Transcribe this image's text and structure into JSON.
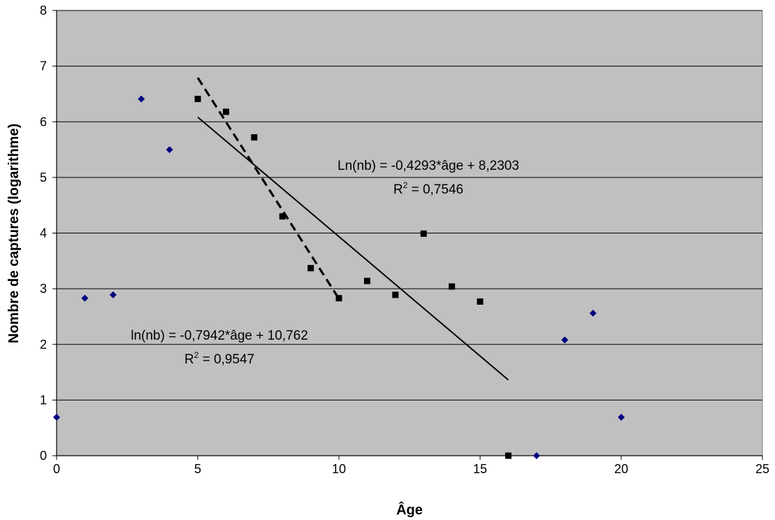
{
  "chart_data": {
    "type": "scatter",
    "xlabel": "Âge",
    "ylabel": "Nombre de captures (logarithme)",
    "xlim": [
      0,
      25
    ],
    "ylim": [
      0,
      8
    ],
    "xticks": [
      "0",
      "5",
      "10",
      "15",
      "20",
      "25"
    ],
    "yticks": [
      "0",
      "1",
      "2",
      "3",
      "4",
      "5",
      "6",
      "7",
      "8"
    ],
    "grid": "horizontal",
    "plot_background": "#c0c0c0",
    "series": [
      {
        "marker": "diamond",
        "color": "#000080",
        "x": [
          0,
          1,
          2,
          3,
          4,
          17,
          18,
          19,
          20
        ],
        "y": [
          0.69,
          2.83,
          2.89,
          6.41,
          5.5,
          0,
          2.08,
          2.56,
          0.69
        ]
      },
      {
        "marker": "square",
        "color": "#000000",
        "x": [
          5,
          6,
          7,
          8,
          9,
          10,
          11,
          12,
          13,
          14,
          15,
          16
        ],
        "y": [
          6.41,
          6.18,
          5.72,
          4.3,
          3.37,
          2.83,
          3.14,
          2.89,
          3.99,
          3.04,
          2.77,
          0
        ]
      }
    ],
    "trendlines": [
      {
        "style": "solid",
        "slope": -0.4293,
        "intercept": 8.2303,
        "x_range": [
          5,
          16
        ]
      },
      {
        "style": "dashed",
        "slope": -0.7942,
        "intercept": 10.762,
        "x_range": [
          5,
          10
        ]
      }
    ],
    "annotations": [
      {
        "id": "solid-eq",
        "line1": "Ln(nb) = -0,4293*âge + 8,2303",
        "r2_prefix": "R",
        "r2_exp": "2",
        "r2_value": " = 0,7546"
      },
      {
        "id": "dashed-eq",
        "line1": "ln(nb) = -0,7942*âge + 10,762",
        "r2_prefix": "R",
        "r2_exp": "2",
        "r2_value": " = 0,9547"
      }
    ]
  }
}
